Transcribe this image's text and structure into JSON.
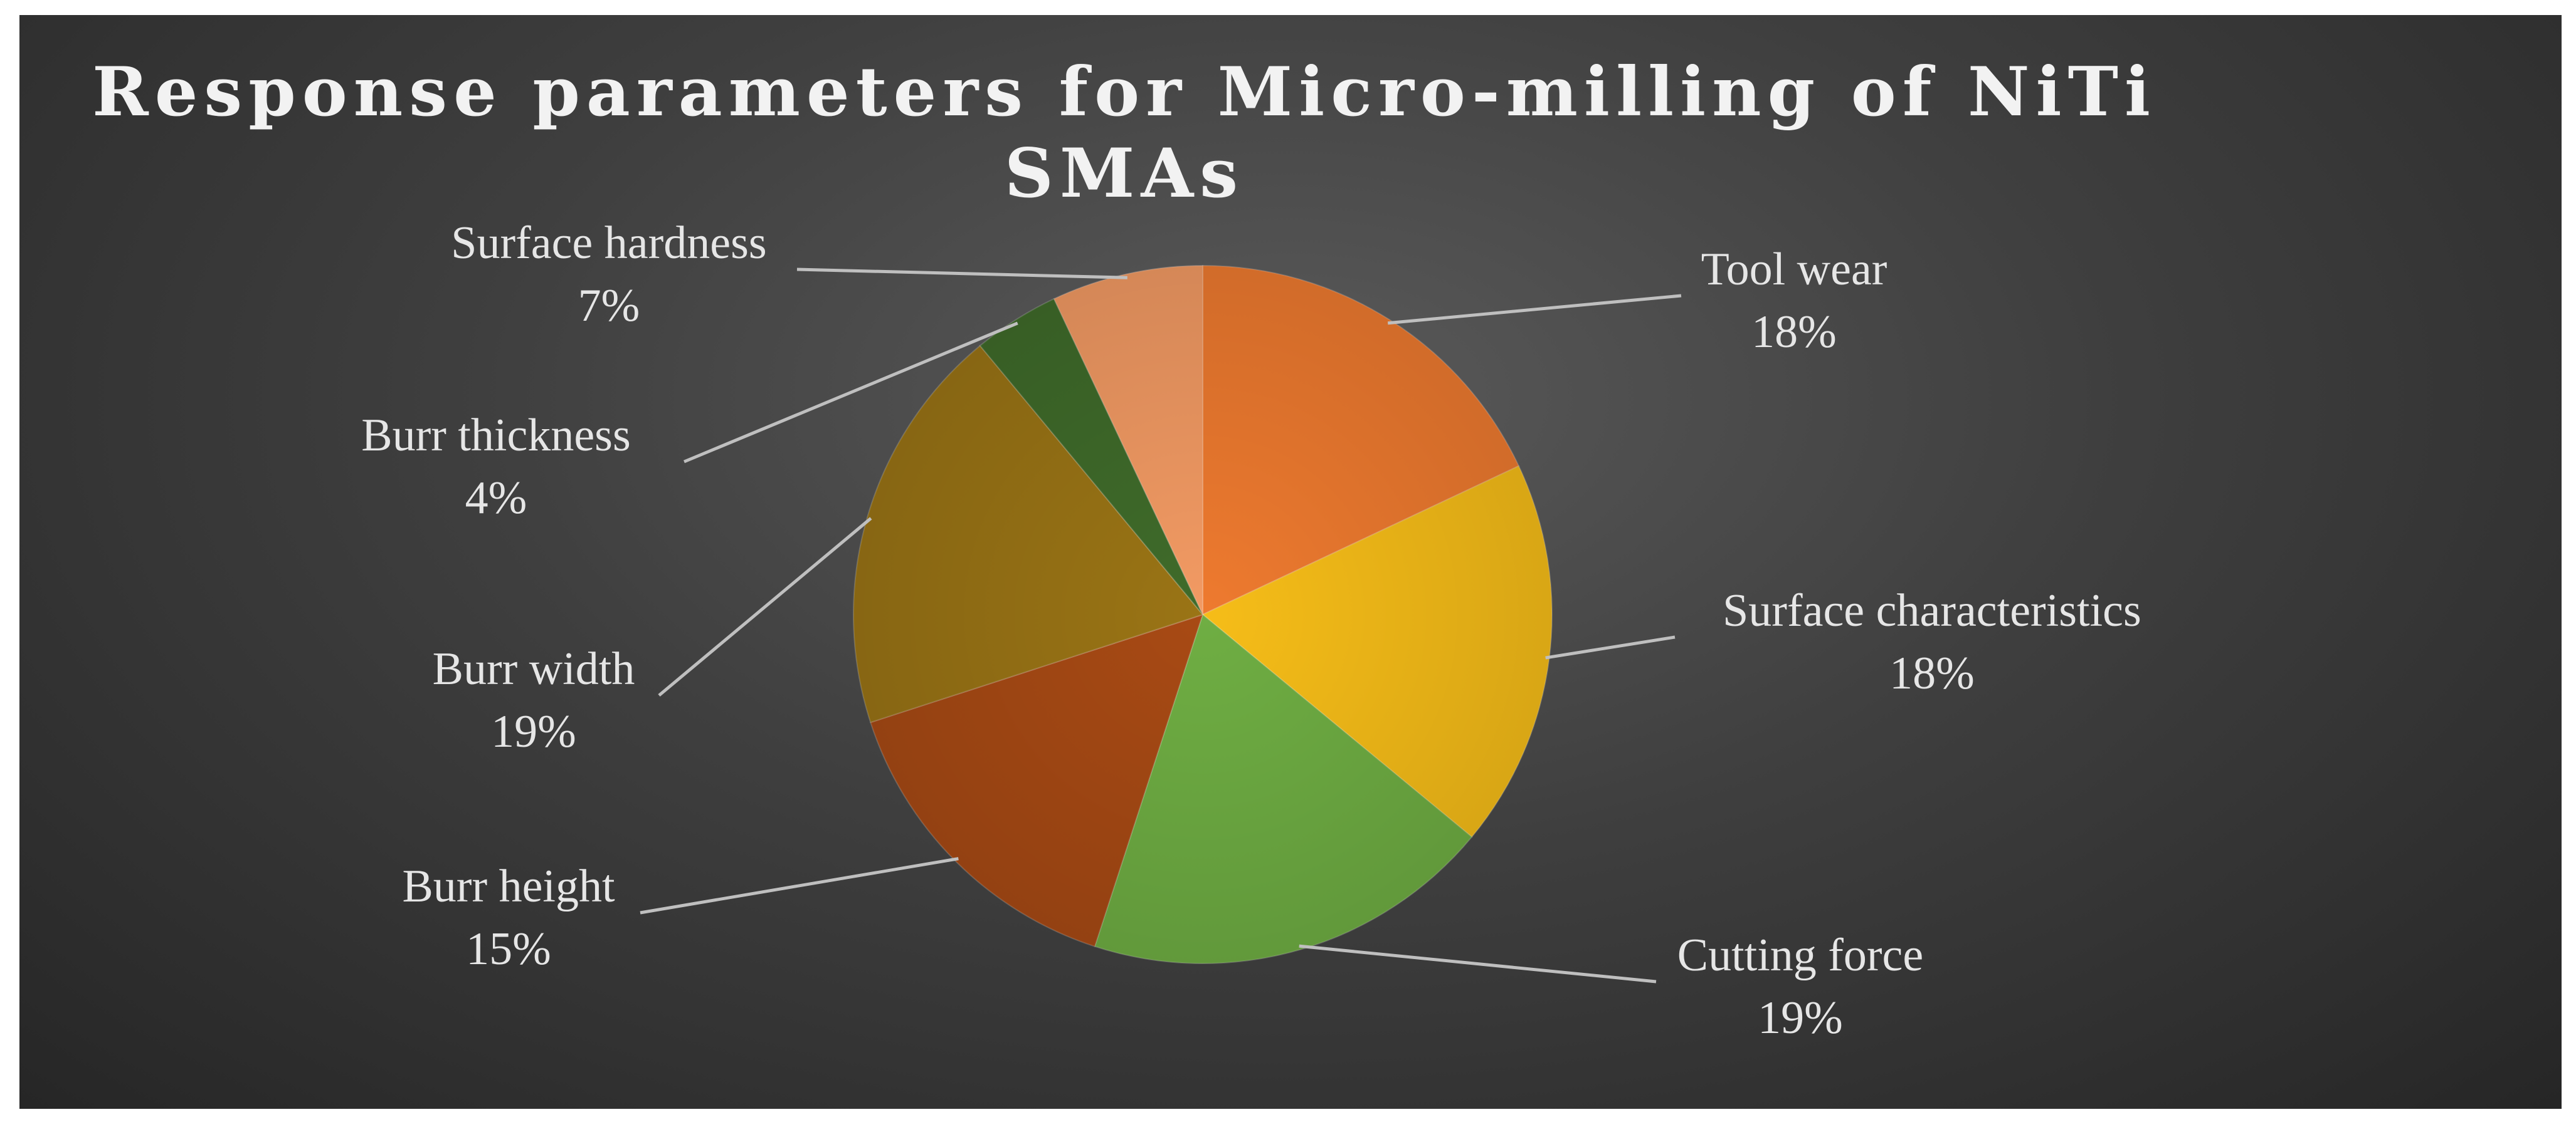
{
  "chart_data": {
    "type": "pie",
    "title_lines": [
      "Response parameters for Micro-milling of NiTi",
      "SMAs"
    ],
    "slices": [
      {
        "label": "Tool wear",
        "value": 18,
        "display": "18%",
        "color": "#ee7a2f"
      },
      {
        "label": "Surface characteristics",
        "value": 18,
        "display": "18%",
        "color": "#f6bd18"
      },
      {
        "label": "Cutting force",
        "value": 19,
        "display": "19%",
        "color": "#6fae43"
      },
      {
        "label": "Burr height",
        "value": 15,
        "display": "15%",
        "color": "#a84a14"
      },
      {
        "label": "Burr width",
        "value": 19,
        "display": "19%",
        "color": "#9a7415"
      },
      {
        "label": "Burr thickness",
        "value": 4,
        "display": "4%",
        "color": "#3f6b2a"
      },
      {
        "label": "Surface hardness",
        "value": 7,
        "display": "7%",
        "color": "#f29a63"
      }
    ],
    "start_angle": "12 o'clock",
    "direction": "clockwise",
    "data_labels": "category name and percentage, outside with leader lines",
    "legend": "none"
  }
}
